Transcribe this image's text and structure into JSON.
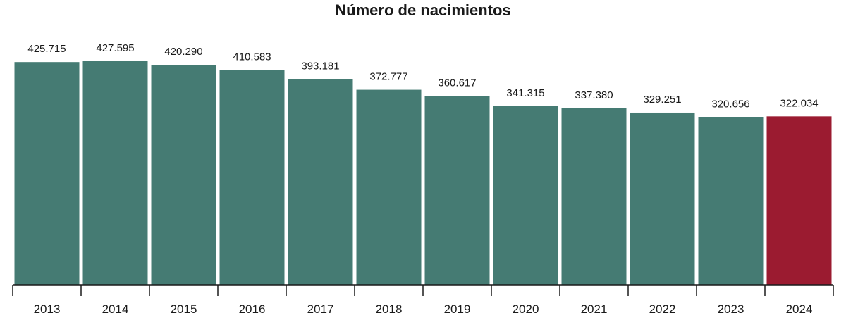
{
  "chart_data": {
    "type": "bar",
    "title": "Número de nacimientos",
    "xlabel": "",
    "ylabel": "",
    "ylim": [
      0,
      430000
    ],
    "grid": false,
    "legend": "none",
    "categories": [
      "2013",
      "2014",
      "2015",
      "2016",
      "2017",
      "2018",
      "2019",
      "2020",
      "2021",
      "2022",
      "2023",
      "2024"
    ],
    "values": [
      425715,
      427595,
      420290,
      410583,
      393181,
      372777,
      360617,
      341315,
      337380,
      329251,
      320656,
      322034
    ],
    "value_labels": [
      "425.715",
      "427.595",
      "420.290",
      "410.583",
      "393.181",
      "372.777",
      "360.617",
      "341.315",
      "337.380",
      "329.251",
      "320.656",
      "322.034"
    ],
    "colors": {
      "default": "#457b73",
      "highlight": "#9b1b30",
      "highlight_index": 11
    }
  }
}
